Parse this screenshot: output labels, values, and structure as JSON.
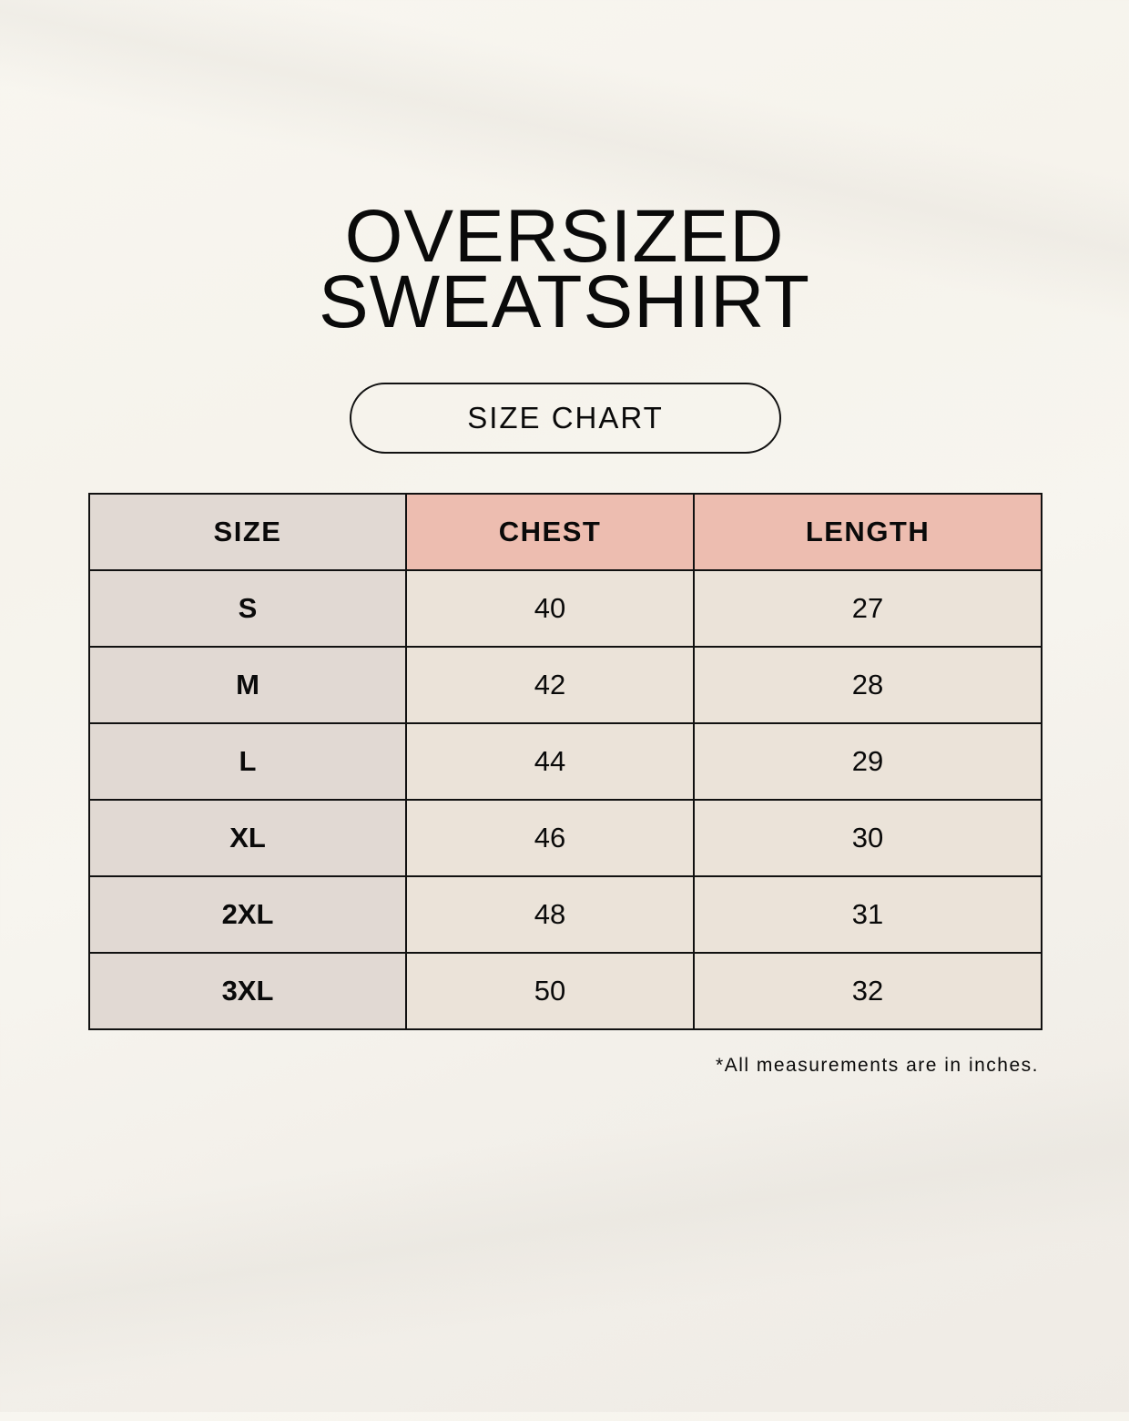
{
  "title": {
    "line1": "OVERSIZED",
    "line2": "SWEATSHIRT"
  },
  "badge": "SIZE CHART",
  "table": {
    "headers": [
      "SIZE",
      "CHEST",
      "LENGTH"
    ],
    "rows": [
      {
        "size": "S",
        "chest": "40",
        "length": "27"
      },
      {
        "size": "M",
        "chest": "42",
        "length": "28"
      },
      {
        "size": "L",
        "chest": "44",
        "length": "29"
      },
      {
        "size": "XL",
        "chest": "46",
        "length": "30"
      },
      {
        "size": "2XL",
        "chest": "48",
        "length": "31"
      },
      {
        "size": "3XL",
        "chest": "50",
        "length": "32"
      }
    ]
  },
  "note": "*All measurements are in inches.",
  "colors": {
    "size_column": "#e1d9d3",
    "header_accent": "#edbdb0",
    "value_cells": "#ebe3d9"
  }
}
